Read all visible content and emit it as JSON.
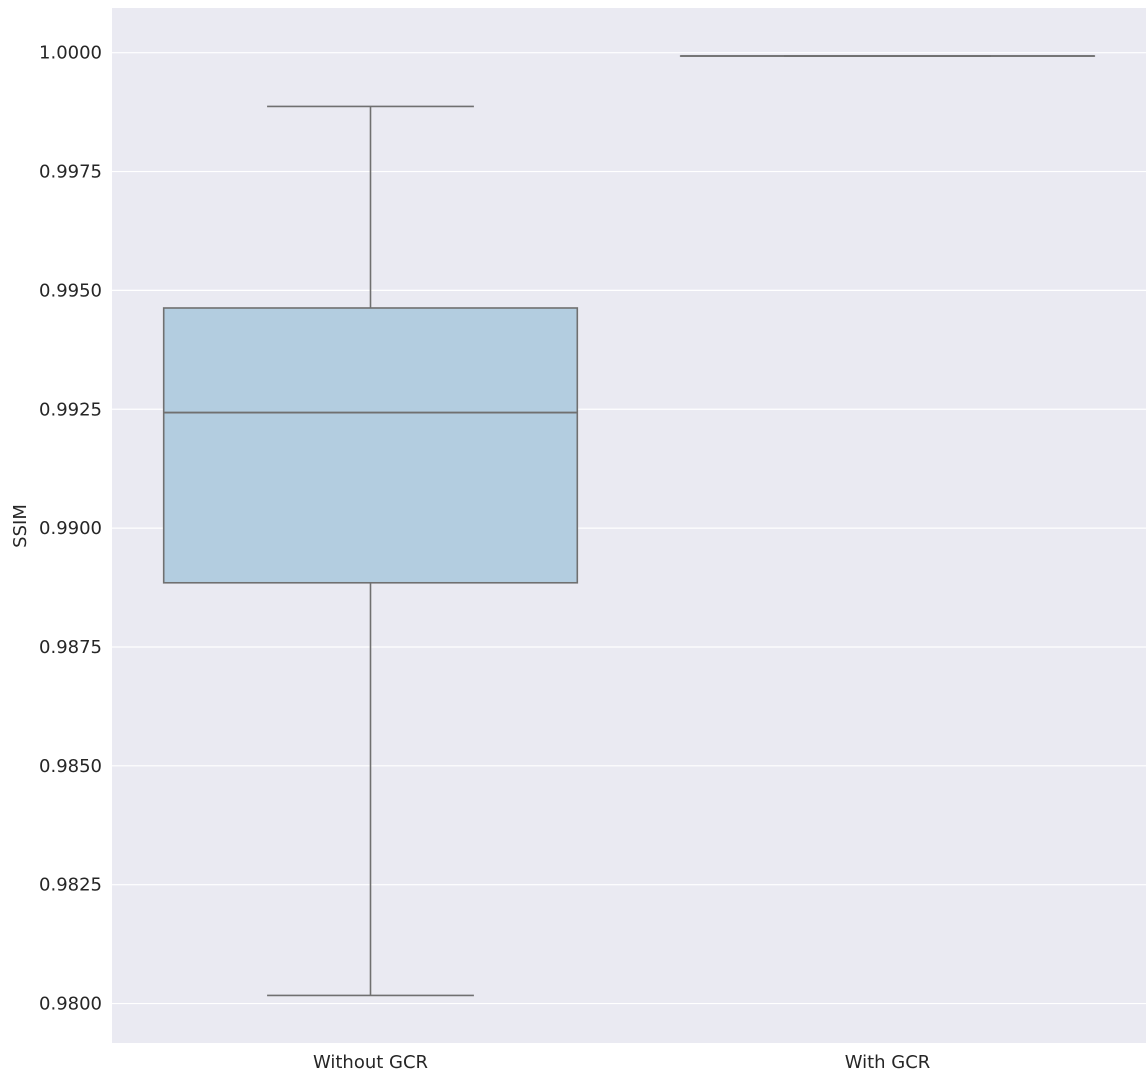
{
  "chart_data": {
    "type": "box",
    "ylabel": "SSIM",
    "xlabel": "",
    "ylim": [
      0.97917,
      1.00094
    ],
    "yticks": [
      0.98,
      0.9825,
      0.985,
      0.9875,
      0.99,
      0.9925,
      0.995,
      0.9975,
      1.0
    ],
    "ytick_labels": [
      "0.9800",
      "0.9825",
      "0.9850",
      "0.9875",
      "0.9900",
      "0.9925",
      "0.9950",
      "0.9975",
      "1.0000"
    ],
    "grid": true,
    "categories": [
      "Without GCR",
      "With GCR"
    ],
    "boxes": [
      {
        "category": "Without GCR",
        "whisker_low": 0.98017,
        "q1": 0.98885,
        "median": 0.99243,
        "q3": 0.99463,
        "whisker_high": 0.99887
      },
      {
        "category": "With GCR",
        "whisker_low": 0.99993,
        "q1": 0.99993,
        "median": 0.99993,
        "q3": 0.99993,
        "whisker_high": 0.99993
      }
    ],
    "colors": {
      "background": "#eaeaf2",
      "grid": "#ffffff",
      "box_fill": "#b3cde0",
      "line": "#707070"
    }
  }
}
